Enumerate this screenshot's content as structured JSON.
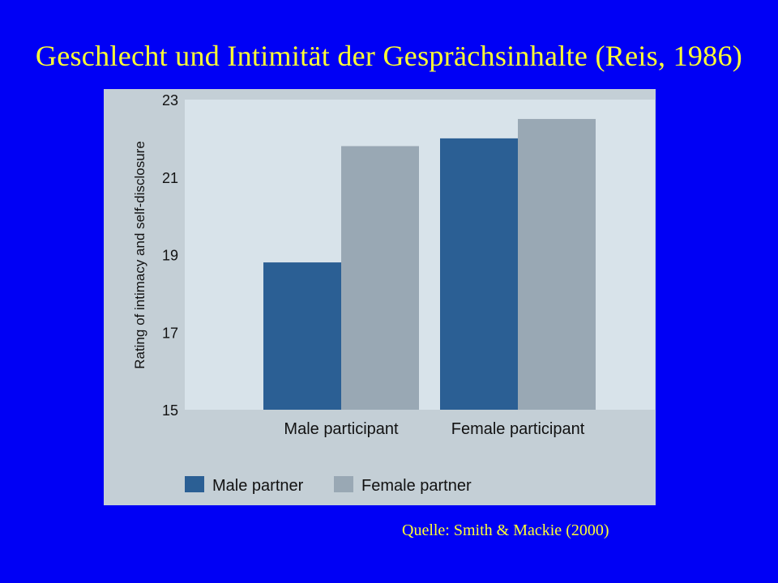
{
  "title": "Geschlecht und Intimität der Gesprächsinhalte (Reis, 1986)",
  "source": "Quelle: Smith & Mackie (2000)",
  "colors": {
    "background": "#0000f5",
    "title_text": "#ffff33",
    "figure_bg": "#c4cfd6",
    "plot_bg": "#d8e3ea",
    "male_partner": "#2b5f94",
    "female_partner": "#99a8b4"
  },
  "chart_data": {
    "type": "bar",
    "title": "",
    "xlabel": "",
    "ylabel": "Rating of intimacy and self-disclosure",
    "categories": [
      "Male participant",
      "Female participant"
    ],
    "series": [
      {
        "name": "Male partner",
        "values": [
          18.8,
          22.0
        ]
      },
      {
        "name": "Female partner",
        "values": [
          21.8,
          22.5
        ]
      }
    ],
    "ylim": [
      15,
      23
    ],
    "yticks": [
      15,
      17,
      19,
      21,
      23
    ],
    "grid": false,
    "legend_position": "bottom-left"
  }
}
